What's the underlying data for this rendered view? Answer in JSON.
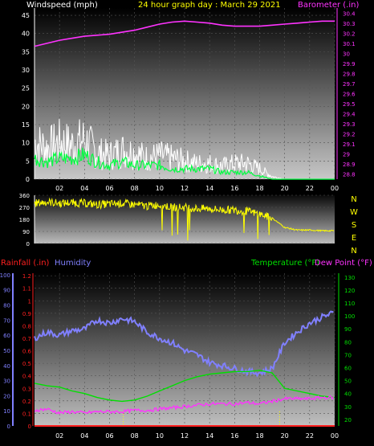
{
  "colors": {
    "wind": "#ffffff",
    "gust_fill": "#e0e0e0",
    "wind_avg": "#00ff40",
    "barometer": "#ff33ff",
    "direction": "#ffff00",
    "rainfall": "#ff2020",
    "humidity": "#8080ff",
    "temperature": "#00e000",
    "dewpoint": "#ff33ff",
    "title": "#ffff00",
    "axis_text": "#ffffff"
  },
  "chart_data": [
    {
      "id": "wind_baro",
      "type": "line",
      "title": "24 hour graph day : March 29 2021",
      "left_axis_label": "Windspeed (mph)",
      "right_axis_label": "Barometer (.in)",
      "left_ticks": [
        "0",
        "5",
        "10",
        "15",
        "20",
        "25",
        "30",
        "35",
        "40",
        "45"
      ],
      "right_ticks": [
        "28.8",
        "28.9",
        "29",
        "29.1",
        "29.2",
        "29.3",
        "29.4",
        "29.5",
        "29.6",
        "29.7",
        "29.8",
        "29.9",
        "30",
        "30.1",
        "30.2",
        "30.3",
        "30.4"
      ],
      "x_ticks": [
        "02",
        "04",
        "06",
        "08",
        "10",
        "12",
        "14",
        "16",
        "18",
        "20",
        "22",
        "00"
      ],
      "ylim_left": [
        0,
        47
      ],
      "ylim_right": [
        28.75,
        30.45
      ],
      "x_hours": [
        0,
        1,
        2,
        3,
        4,
        5,
        6,
        7,
        8,
        9,
        10,
        11,
        12,
        13,
        14,
        15,
        16,
        17,
        18,
        19,
        20,
        21,
        22,
        23,
        24
      ],
      "series": [
        {
          "key": "gust",
          "values": [
            14,
            12,
            14,
            13,
            15,
            10,
            9,
            11,
            10,
            8,
            9,
            8,
            7,
            6,
            6,
            5,
            6,
            6,
            4,
            1,
            0,
            0,
            0,
            0,
            0
          ]
        },
        {
          "key": "wind",
          "values": [
            6,
            5,
            6,
            6,
            7,
            5,
            4,
            5,
            4,
            4,
            4,
            3,
            3,
            3,
            3,
            2,
            2,
            2,
            1,
            0,
            0,
            0,
            0,
            0,
            0
          ]
        },
        {
          "key": "barometer",
          "values": [
            30.07,
            30.1,
            30.13,
            30.15,
            30.17,
            30.18,
            30.19,
            30.21,
            30.23,
            30.26,
            30.29,
            30.31,
            30.32,
            30.31,
            30.3,
            30.28,
            30.27,
            30.27,
            30.27,
            30.28,
            30.29,
            30.3,
            30.31,
            30.32,
            30.32
          ]
        }
      ]
    },
    {
      "id": "direction",
      "type": "line",
      "left_ticks": [
        "0",
        "90",
        "180",
        "270",
        "360"
      ],
      "right_labels": [
        "N",
        "W",
        "S",
        "E",
        "N"
      ],
      "x_hours": [
        0,
        1,
        2,
        3,
        4,
        5,
        6,
        7,
        8,
        9,
        10,
        11,
        12,
        13,
        14,
        15,
        16,
        17,
        18,
        19,
        20,
        21,
        22,
        23,
        24
      ],
      "ylim": [
        0,
        360
      ],
      "series": [
        {
          "key": "direction",
          "values": [
            300,
            310,
            300,
            305,
            300,
            290,
            295,
            300,
            290,
            280,
            290,
            270,
            270,
            260,
            260,
            250,
            250,
            240,
            220,
            190,
            120,
            100,
            100,
            95,
            95
          ]
        }
      ]
    },
    {
      "id": "rain_hum_temp",
      "type": "line",
      "left_label_rain": "Rainfall (.in)",
      "left_label_hum": "Humidity",
      "right_label_temp": "Temperature (°F)",
      "right_label_dew": "Dew Point (°F)",
      "rain_ticks": [
        "0",
        "0.1",
        "0.2",
        "0.3",
        "0.4",
        "0.5",
        "0.6",
        "0.7",
        "0.8",
        "0.9",
        "1",
        "1.1",
        "1.2"
      ],
      "hum_ticks": [
        "0",
        "10",
        "20",
        "30",
        "40",
        "50",
        "60",
        "70",
        "80",
        "90",
        "100"
      ],
      "temp_ticks": [
        "20",
        "30",
        "40",
        "50",
        "60",
        "70",
        "80",
        "90",
        "100",
        "110",
        "120",
        "130"
      ],
      "x_ticks": [
        "02",
        "04",
        "06",
        "08",
        "10",
        "12",
        "14",
        "16",
        "18",
        "20",
        "22",
        "00"
      ],
      "x_hours": [
        0,
        1,
        2,
        3,
        4,
        5,
        6,
        7,
        8,
        9,
        10,
        11,
        12,
        13,
        14,
        15,
        16,
        17,
        18,
        19,
        20,
        21,
        22,
        23,
        24
      ],
      "ylim_rain": [
        0,
        1.22
      ],
      "ylim_hum": [
        0,
        101
      ],
      "ylim_temp": [
        15,
        133
      ],
      "series": [
        {
          "key": "humidity",
          "values": [
            58,
            62,
            60,
            63,
            64,
            70,
            68,
            71,
            69,
            62,
            58,
            55,
            50,
            47,
            42,
            40,
            38,
            36,
            35,
            38,
            55,
            62,
            68,
            72,
            75
          ]
        },
        {
          "key": "temperature",
          "values": [
            48,
            46,
            45,
            42,
            40,
            37,
            35,
            34,
            35,
            38,
            42,
            46,
            50,
            53,
            55,
            56,
            57,
            57,
            58,
            56,
            44,
            42,
            40,
            38,
            37
          ]
        },
        {
          "key": "dewpoint",
          "values": [
            27,
            28,
            25,
            26,
            25,
            26,
            26,
            26,
            27,
            27,
            28,
            29,
            30,
            31,
            32,
            32,
            32,
            33,
            32,
            34,
            36,
            36,
            36,
            37,
            37
          ]
        },
        {
          "key": "rainfall",
          "values": [
            0,
            0,
            0,
            0,
            0,
            0,
            0,
            0,
            0,
            0,
            0,
            0,
            0,
            0,
            0,
            0,
            0,
            0,
            0,
            0,
            0,
            0,
            0,
            0,
            0
          ]
        }
      ]
    }
  ]
}
